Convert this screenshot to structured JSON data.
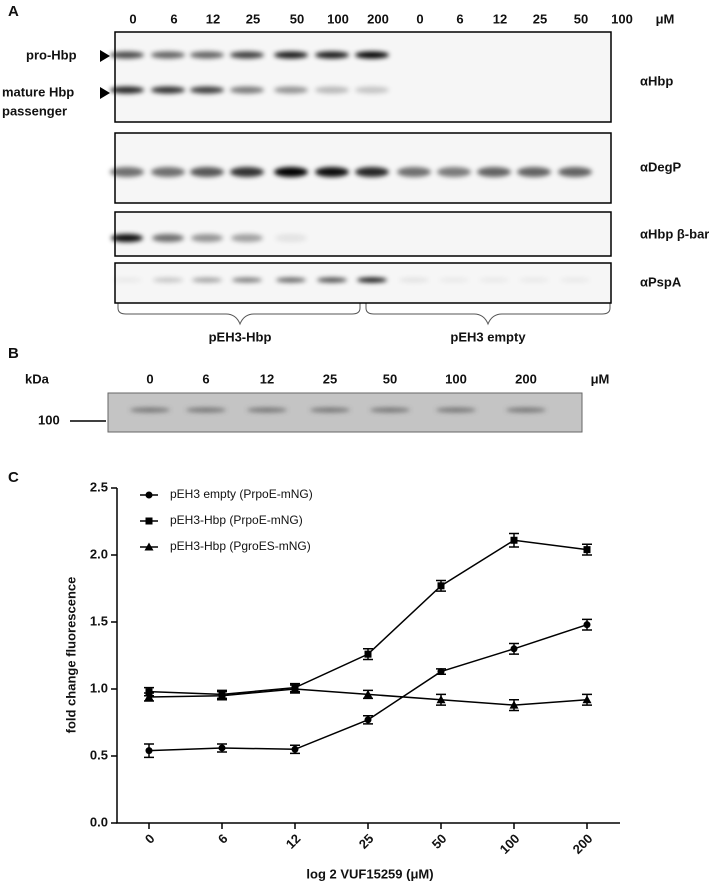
{
  "panel_a": {
    "label": "A",
    "lanes": [
      "0",
      "6",
      "12",
      "25",
      "50",
      "100",
      "200",
      "0",
      "6",
      "12",
      "25",
      "50",
      "100"
    ],
    "unit": "μM",
    "band_labels": [
      "pro-Hbp",
      "mature Hbp",
      "passenger"
    ],
    "antibodies": [
      "αHbp",
      "αDegP",
      "αHbp β-barrel",
      "αPspA"
    ],
    "groups": [
      "pEH3-Hbp",
      "pEH3 empty"
    ]
  },
  "panel_b": {
    "label": "B",
    "kda": "kDa",
    "lanes": [
      "0",
      "6",
      "12",
      "25",
      "50",
      "100",
      "200"
    ],
    "unit": "μM",
    "marker": "100"
  },
  "chart_data": {
    "type": "line",
    "panel_label": "C",
    "x_label": "log 2 VUF15259 (μM)",
    "y_label": "fold change fluorescence",
    "categories": [
      "0",
      "6",
      "12",
      "25",
      "50",
      "100",
      "200"
    ],
    "ylim": [
      0,
      2.5
    ],
    "yticks": [
      {
        "value": 0,
        "label": "0.0"
      },
      0.5,
      {
        "value": 1,
        "label": "1.0"
      },
      1.5,
      {
        "value": 2,
        "label": "2.0"
      },
      2.5
    ],
    "series": [
      {
        "name": "pEH3 empty (PrpoE-mNG)",
        "color": "#000000",
        "marker": "circle",
        "values": [
          0.54,
          0.56,
          0.55,
          0.77,
          1.13,
          1.3,
          1.48
        ],
        "errors": [
          0.05,
          0.03,
          0.03,
          0.03,
          0.02,
          0.04,
          0.04
        ]
      },
      {
        "name": "pEH3-Hbp (PrpoE-mNG)",
        "color": "#000000",
        "marker": "square",
        "values": [
          0.98,
          0.96,
          1.01,
          1.26,
          1.77,
          2.11,
          2.04
        ],
        "errors": [
          0.03,
          0.03,
          0.03,
          0.04,
          0.04,
          0.05,
          0.04
        ]
      },
      {
        "name": "pEH3-Hbp (PgroES-mNG)",
        "color": "#000000",
        "marker": "triangle",
        "values": [
          0.94,
          0.95,
          1.0,
          0.96,
          0.92,
          0.88,
          0.92
        ],
        "errors": [
          0.03,
          0.03,
          0.03,
          0.03,
          0.04,
          0.04,
          0.04
        ]
      }
    ]
  }
}
